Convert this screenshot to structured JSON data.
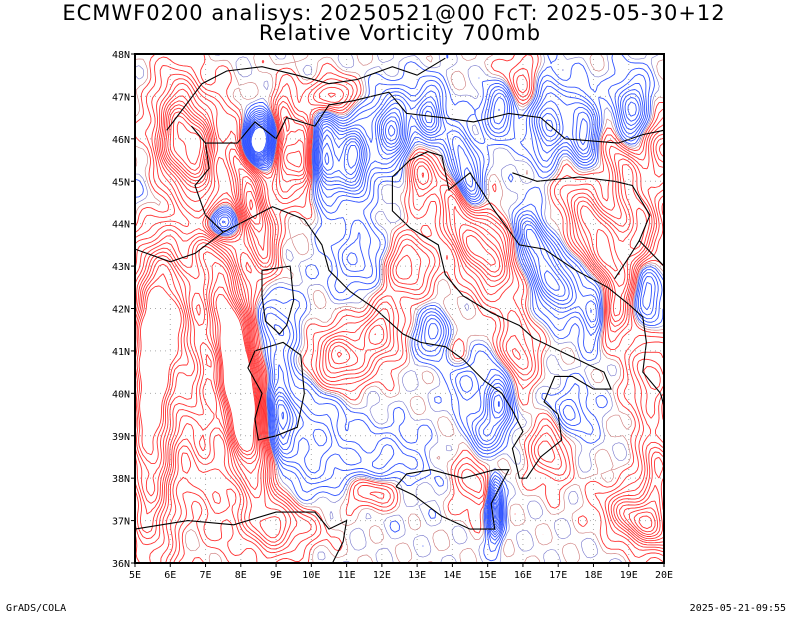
{
  "title": {
    "line1": "ECMWF0200 analisys: 20250521@00 FcT: 2025-05-30+12",
    "line2": "Relative Vorticity 700mb"
  },
  "map": {
    "lon_range": [
      5,
      20
    ],
    "lat_range": [
      36,
      48
    ],
    "lon_labels": [
      "5E",
      "6E",
      "7E",
      "8E",
      "9E",
      "10E",
      "11E",
      "12E",
      "13E",
      "14E",
      "15E",
      "16E",
      "17E",
      "18E",
      "19E",
      "20E"
    ],
    "lat_labels": [
      "36N",
      "37N",
      "38N",
      "39N",
      "40N",
      "41N",
      "42N",
      "43N",
      "44N",
      "45N",
      "46N",
      "47N",
      "48N"
    ],
    "colors": {
      "positive": "#ff3333",
      "negative": "#3355ff",
      "coast": "#000000",
      "frame": "#000000"
    }
  },
  "footer": {
    "left": "GrADS/COLA",
    "right": "2025-05-21-09:55"
  }
}
